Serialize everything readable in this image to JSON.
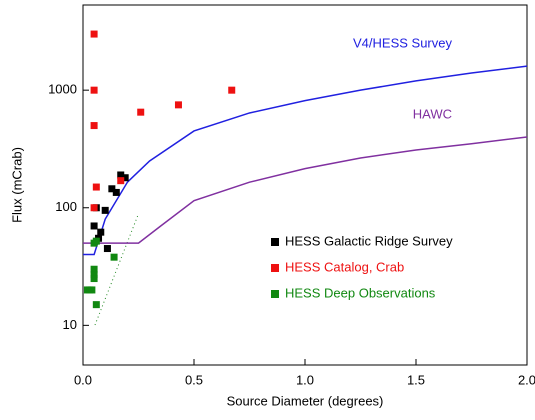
{
  "chart_data": {
    "type": "scatter",
    "xlabel": "Source Diameter (degrees)",
    "ylabel": "Flux (mCrab)",
    "xlim": [
      0,
      2.0
    ],
    "xticks": [
      {
        "value": 0,
        "label": "0.0"
      },
      0.5,
      {
        "value": 1,
        "label": "1.0"
      },
      1.5,
      {
        "value": 2,
        "label": "2.0"
      }
    ],
    "ylim": [
      4.6,
      5300
    ],
    "yticks": [
      10,
      100,
      1000
    ],
    "log_y": true,
    "legend": "lower-right",
    "curves": [
      {
        "name": "V4/HESS Survey",
        "color": "#2020e0",
        "x": [
          0,
          0.05,
          0.1,
          0.2,
          0.3,
          0.5,
          0.75,
          1.0,
          1.25,
          1.5,
          1.75,
          2.0
        ],
        "values": [
          40,
          40,
          80,
          165,
          250,
          450,
          640,
          815,
          1000,
          1200,
          1400,
          1600
        ]
      },
      {
        "name": "HAWC",
        "color": "#8030a0",
        "x": [
          0,
          0.25,
          0.35,
          0.5,
          0.75,
          1.0,
          1.25,
          1.5,
          1.75,
          2.0
        ],
        "values": [
          50,
          50,
          70,
          115,
          165,
          215,
          265,
          310,
          350,
          400
        ]
      }
    ],
    "series": [
      {
        "name": "HESS Galactic Ridge Survey",
        "color": "#000000",
        "x": [
          0.05,
          0.06,
          0.07,
          0.08,
          0.1,
          0.11,
          0.13,
          0.15,
          0.17,
          0.19
        ],
        "values": [
          70,
          100,
          55,
          62,
          95,
          45,
          145,
          135,
          190,
          180
        ]
      },
      {
        "name": "HESS Catalog, Crab",
        "color": "#ee1111",
        "x": [
          0.05,
          0.05,
          0.05,
          0.05,
          0.06,
          0.17,
          0.26,
          0.43,
          0.67
        ],
        "values": [
          3000,
          1000,
          500,
          100,
          150,
          170,
          650,
          750,
          1000
        ]
      },
      {
        "name": "HESS Deep Observations",
        "color": "#118811",
        "x": [
          0.02,
          0.03,
          0.04,
          0.05,
          0.05,
          0.05,
          0.05,
          0.06,
          0.06,
          0.14
        ],
        "values": [
          20,
          20,
          20,
          50,
          30,
          27,
          25,
          15,
          52,
          38
        ]
      }
    ]
  }
}
